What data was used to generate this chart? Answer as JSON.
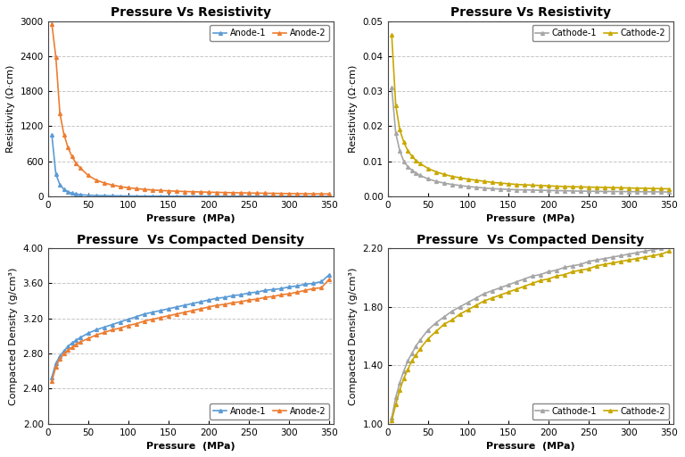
{
  "title_top_left": "Pressure Vs Resistivity",
  "title_top_right": "Pressure Vs Resistivity",
  "title_bot_left": "Pressure  Vs Compacted Density",
  "title_bot_right": "Pressure  Vs Compacted Density",
  "xlabel": "Pressure  (MPa)",
  "ylabel_resistivity": "Resistivity (Ω·cm)",
  "ylabel_density": "Compacted Density (g/cm³)",
  "anode_color1": "#5b9bd5",
  "anode_color2": "#ed7d31",
  "cathode_color1": "#a6a6a6",
  "cathode_color2": "#c8a800",
  "pressure_points": [
    5,
    10,
    15,
    20,
    25,
    30,
    35,
    40,
    50,
    60,
    70,
    80,
    90,
    100,
    110,
    120,
    130,
    140,
    150,
    160,
    170,
    180,
    190,
    200,
    210,
    220,
    230,
    240,
    250,
    260,
    270,
    280,
    290,
    300,
    310,
    320,
    330,
    340,
    350
  ],
  "anode1_resistivity": [
    1050,
    380,
    200,
    120,
    80,
    55,
    40,
    30,
    20,
    15,
    12,
    10,
    8,
    7,
    6,
    5.5,
    5,
    4.5,
    4,
    3.7,
    3.4,
    3.1,
    2.9,
    2.7,
    2.5,
    2.4,
    2.3,
    2.2,
    2.1,
    2.0,
    1.95,
    1.9,
    1.85,
    1.8,
    1.75,
    1.7,
    1.65,
    1.6,
    1.55
  ],
  "anode2_resistivity": [
    2950,
    2380,
    1420,
    1060,
    840,
    680,
    570,
    490,
    360,
    280,
    230,
    195,
    168,
    148,
    133,
    120,
    110,
    102,
    95,
    89,
    84,
    80,
    76,
    72,
    69,
    66,
    63,
    61,
    58,
    56,
    54,
    52,
    50,
    48,
    47,
    45,
    44,
    43,
    42
  ],
  "cathode1_resistivity": [
    0.031,
    0.018,
    0.013,
    0.01,
    0.0085,
    0.0075,
    0.0067,
    0.006,
    0.005,
    0.0043,
    0.0038,
    0.0034,
    0.0031,
    0.0028,
    0.0026,
    0.0024,
    0.0022,
    0.0021,
    0.002,
    0.0019,
    0.00185,
    0.0018,
    0.00175,
    0.0017,
    0.00165,
    0.0016,
    0.00155,
    0.0015,
    0.00148,
    0.00145,
    0.00142,
    0.0014,
    0.00138,
    0.00136,
    0.00134,
    0.00132,
    0.0013,
    0.00128,
    0.00126
  ],
  "cathode2_resistivity": [
    0.046,
    0.026,
    0.019,
    0.0155,
    0.013,
    0.0115,
    0.0103,
    0.0094,
    0.008,
    0.007,
    0.0063,
    0.0057,
    0.0053,
    0.0049,
    0.0046,
    0.0043,
    0.004,
    0.0038,
    0.0036,
    0.0034,
    0.0033,
    0.0032,
    0.0031,
    0.003,
    0.0029,
    0.0028,
    0.00275,
    0.0027,
    0.00265,
    0.0026,
    0.00255,
    0.0025,
    0.00245,
    0.0024,
    0.00235,
    0.0023,
    0.00225,
    0.0022,
    0.00215
  ],
  "anode1_density": [
    2.53,
    2.69,
    2.77,
    2.83,
    2.88,
    2.92,
    2.95,
    2.98,
    3.03,
    3.07,
    3.1,
    3.13,
    3.16,
    3.19,
    3.22,
    3.25,
    3.27,
    3.29,
    3.31,
    3.33,
    3.35,
    3.37,
    3.39,
    3.41,
    3.43,
    3.44,
    3.46,
    3.47,
    3.49,
    3.5,
    3.52,
    3.53,
    3.54,
    3.56,
    3.57,
    3.59,
    3.6,
    3.62,
    3.7
  ],
  "anode2_density": [
    2.48,
    2.65,
    2.74,
    2.8,
    2.84,
    2.87,
    2.9,
    2.93,
    2.97,
    3.01,
    3.04,
    3.07,
    3.09,
    3.12,
    3.14,
    3.17,
    3.19,
    3.21,
    3.23,
    3.25,
    3.27,
    3.29,
    3.31,
    3.33,
    3.35,
    3.36,
    3.38,
    3.39,
    3.41,
    3.42,
    3.44,
    3.45,
    3.47,
    3.48,
    3.5,
    3.52,
    3.54,
    3.55,
    3.65
  ],
  "cathode1_density": [
    1.04,
    1.18,
    1.28,
    1.36,
    1.43,
    1.48,
    1.53,
    1.57,
    1.64,
    1.69,
    1.73,
    1.77,
    1.8,
    1.83,
    1.86,
    1.89,
    1.91,
    1.93,
    1.95,
    1.97,
    1.99,
    2.01,
    2.02,
    2.04,
    2.05,
    2.07,
    2.08,
    2.09,
    2.11,
    2.12,
    2.13,
    2.14,
    2.15,
    2.16,
    2.17,
    2.18,
    2.19,
    2.2,
    2.21
  ],
  "cathode2_density": [
    1.02,
    1.13,
    1.23,
    1.31,
    1.37,
    1.43,
    1.47,
    1.51,
    1.58,
    1.63,
    1.68,
    1.71,
    1.75,
    1.78,
    1.81,
    1.84,
    1.86,
    1.88,
    1.9,
    1.92,
    1.94,
    1.96,
    1.98,
    1.99,
    2.01,
    2.02,
    2.04,
    2.05,
    2.06,
    2.08,
    2.09,
    2.1,
    2.11,
    2.12,
    2.13,
    2.14,
    2.15,
    2.16,
    2.18
  ],
  "bg_color": "#ffffff",
  "grid_color": "#c0c0c0",
  "title_fontsize": 10,
  "label_fontsize": 8,
  "tick_fontsize": 7.5,
  "marker_size": 2.8,
  "linewidth": 1.2
}
